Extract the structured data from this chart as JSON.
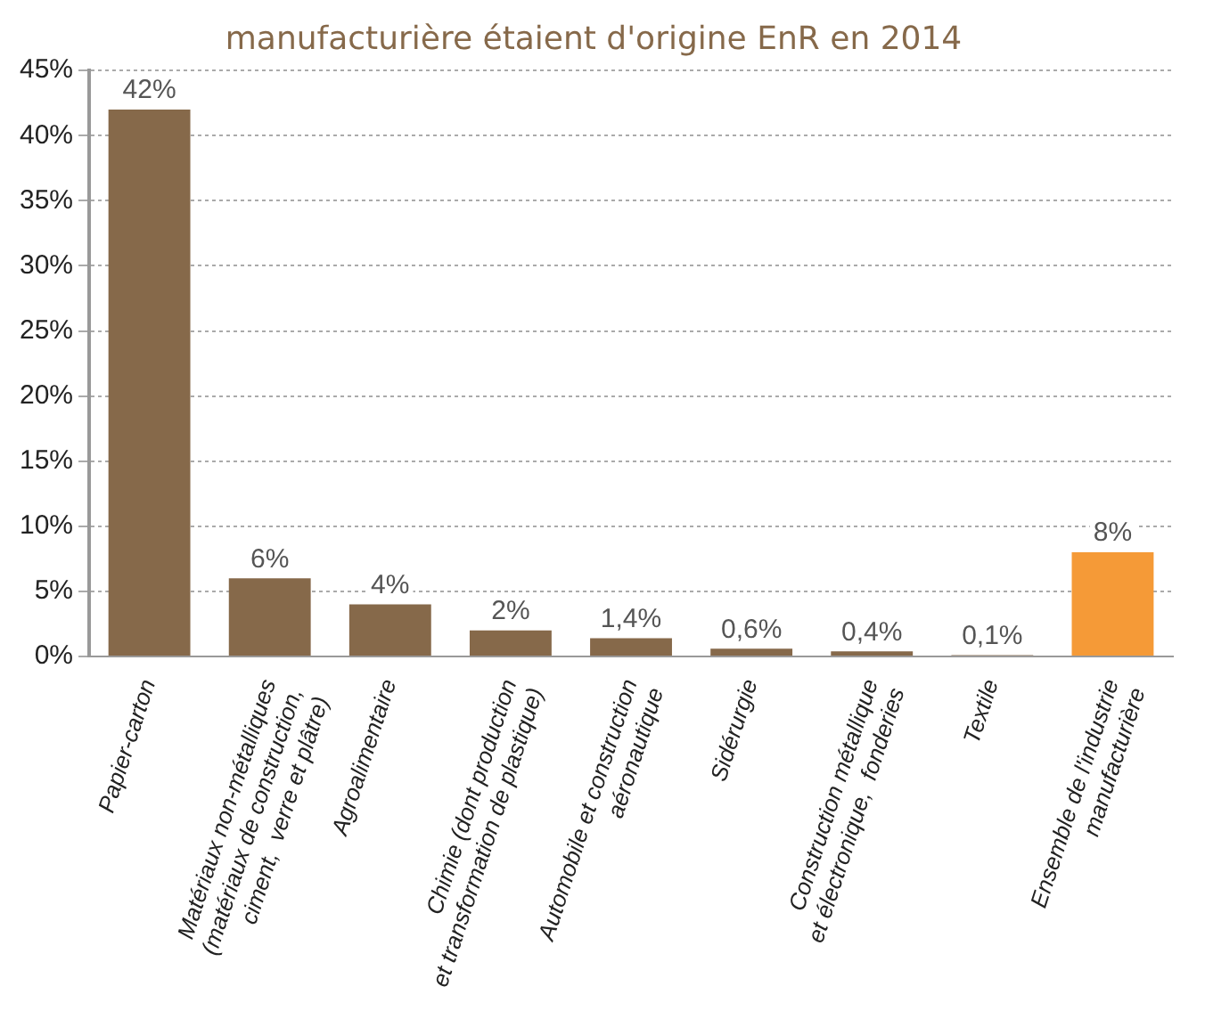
{
  "chart_data": {
    "type": "bar",
    "title": "manufacturière étaient d'origine EnR en 2014",
    "categories": [
      "Papier-carton",
      "Matériaux non-métalliques\n(matériaux de construction,\nciment,  verre et plâtre)",
      "Agroalimentaire",
      "Chimie (dont production\net transformation de plastique)",
      "Automobile et construction\naéronautique",
      "Sidérurgie",
      "Construction métallique\net électronique,  fonderies",
      "Textile",
      "Ensemble de l'industrie\nmanufacturière"
    ],
    "values": [
      42,
      6,
      4,
      2,
      1.4,
      0.6,
      0.4,
      0.1,
      8
    ],
    "colors": [
      "#86694a",
      "#86694a",
      "#86694a",
      "#86694a",
      "#86694a",
      "#86694a",
      "#86694a",
      "#86694a",
      "#f59a37"
    ],
    "value_labels": [
      "42%",
      "6%",
      "4%",
      "2%",
      "1,4%",
      "0,6%",
      "0,4%",
      "0,1%",
      "8%"
    ],
    "ylim": [
      0,
      45
    ],
    "yticks": [
      {
        "value": 0,
        "label": "0%"
      },
      {
        "value": 5,
        "label": "5%"
      },
      {
        "value": 10,
        "label": "10%"
      },
      {
        "value": 15,
        "label": "15%"
      },
      {
        "value": 20,
        "label": "20%"
      },
      {
        "value": 25,
        "label": "25%"
      },
      {
        "value": 30,
        "label": "30%"
      },
      {
        "value": 35,
        "label": "35%"
      },
      {
        "value": 40,
        "label": "40%"
      },
      {
        "value": 45,
        "label": "45%"
      }
    ],
    "grid": "y",
    "legend": false
  }
}
